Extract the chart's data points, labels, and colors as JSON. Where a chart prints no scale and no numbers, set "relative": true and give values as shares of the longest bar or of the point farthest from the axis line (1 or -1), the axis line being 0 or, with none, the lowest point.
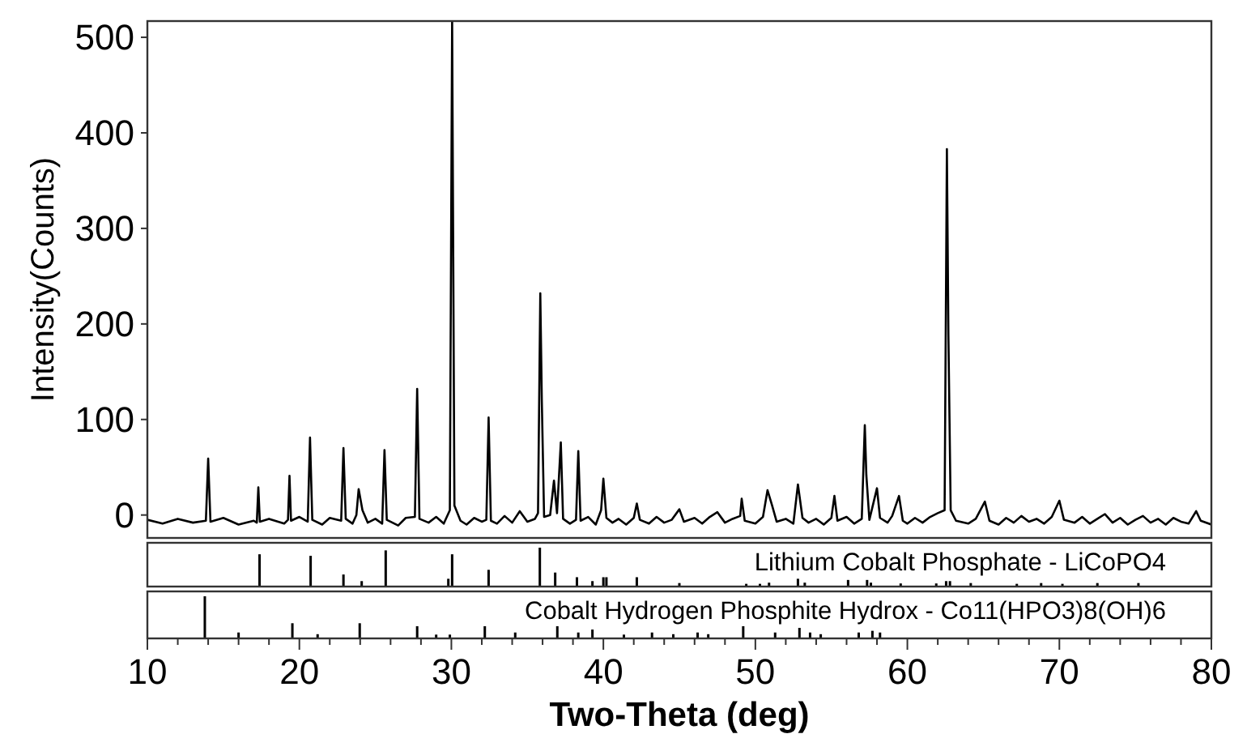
{
  "chart_data": [
    {
      "type": "line",
      "ylabel": "Intensity(Counts)",
      "xlim": [
        10,
        80
      ],
      "ylim": [
        -24,
        517
      ],
      "yticks": [
        0,
        100,
        200,
        300,
        400,
        500
      ],
      "tick_labels": "y",
      "grid": false,
      "series": [
        {
          "color": "#000000",
          "x": [
            10,
            11,
            12,
            13,
            13.85,
            14.0,
            14.15,
            15,
            16,
            17,
            17.2,
            17.3,
            17.4,
            18,
            19,
            19.25,
            19.35,
            19.45,
            20,
            20.55,
            20.7,
            20.85,
            21.5,
            22,
            22.75,
            22.9,
            23.05,
            23.5,
            23.75,
            23.9,
            24.15,
            24.5,
            25,
            25.45,
            25.6,
            25.75,
            26.5,
            27,
            27.6,
            27.75,
            27.9,
            28.5,
            29,
            29.5,
            29.9,
            30.05,
            30.2,
            30.6,
            31,
            31.5,
            32,
            32.3,
            32.45,
            32.6,
            33,
            33.5,
            34,
            34.5,
            35,
            35.5,
            35.7,
            35.85,
            35.95,
            36.1,
            36.5,
            36.75,
            36.95,
            37.2,
            37.35,
            37.8,
            38.2,
            38.35,
            38.5,
            39,
            39.5,
            39.85,
            40.0,
            40.2,
            40.6,
            41,
            41.5,
            42,
            42.2,
            42.4,
            43,
            43.5,
            44,
            44.5,
            45,
            45.3,
            46,
            46.5,
            47,
            47.5,
            48,
            48.5,
            49,
            49.1,
            49.3,
            50,
            50.5,
            50.8,
            51.1,
            51.4,
            52,
            52.5,
            52.8,
            53.1,
            53.5,
            54,
            54.5,
            55,
            55.2,
            55.4,
            56,
            56.5,
            57,
            57.2,
            57.3,
            57.5,
            58.0,
            58.2,
            58.7,
            59,
            59.45,
            59.7,
            60,
            60.5,
            61,
            61.5,
            62,
            62.45,
            62.6,
            62.7,
            62.85,
            63.2,
            64,
            64.5,
            65.1,
            65.4,
            66,
            66.5,
            67,
            67.5,
            68,
            68.5,
            69,
            69.5,
            70,
            70.3,
            71,
            71.5,
            72,
            72.5,
            73,
            73.5,
            74,
            74.5,
            75,
            75.5,
            76,
            76.5,
            77,
            77.5,
            78,
            78.5,
            79,
            79.3,
            80
          ],
          "values": [
            -5,
            -9,
            -4,
            -8,
            -6,
            59,
            -7,
            -3,
            -10,
            -6,
            -8,
            29,
            -7,
            -4,
            -9,
            -5,
            41,
            -6,
            -2,
            -7,
            81,
            -5,
            -10,
            -3,
            -6,
            70,
            -4,
            -9,
            0,
            27,
            5,
            -8,
            -4,
            -9,
            68,
            -5,
            -11,
            -3,
            -2,
            132,
            -4,
            -8,
            -2,
            -9,
            5,
            517,
            10,
            -6,
            -10,
            -3,
            -7,
            -5,
            102,
            -6,
            -9,
            -1,
            -8,
            4,
            -7,
            -4,
            2,
            232,
            120,
            -2,
            0,
            36,
            2,
            76,
            -4,
            -9,
            -5,
            67,
            -6,
            -2,
            -10,
            5,
            38,
            -3,
            -8,
            -4,
            -10,
            -3,
            12,
            -5,
            -9,
            -2,
            -8,
            -5,
            6,
            -7,
            -3,
            -9,
            -2,
            3,
            -8,
            -4,
            -1,
            17,
            -6,
            -9,
            -2,
            26,
            10,
            -7,
            -4,
            -9,
            32,
            -3,
            -8,
            -4,
            -10,
            -3,
            20,
            -6,
            -2,
            -9,
            -4,
            94,
            42,
            -5,
            28,
            -3,
            -8,
            -1,
            20,
            -6,
            -9,
            -3,
            -8,
            -2,
            2,
            5,
            383,
            188,
            5,
            -6,
            -9,
            -4,
            14,
            -6,
            -10,
            -3,
            -8,
            -1,
            -7,
            -4,
            -9,
            -2,
            15,
            -5,
            -8,
            -2,
            -9,
            -4,
            1,
            -8,
            -3,
            -10,
            -5,
            -1,
            -8,
            -4,
            -10,
            -3,
            -7,
            -9,
            4,
            -6,
            -10
          ]
        }
      ]
    },
    {
      "type": "bar",
      "relative": true,
      "title": "Lithium Cobalt Phosphate - LiCoPO4",
      "xlim": [
        10,
        80
      ],
      "tick_labels": false,
      "series": [
        {
          "color": "#000000",
          "x": [
            17.38,
            20.74,
            22.9,
            24.1,
            25.68,
            29.8,
            30.05,
            32.45,
            35.82,
            36.83,
            38.26,
            39.28,
            40.0,
            40.2,
            42.2,
            45.0,
            49.4,
            50.3,
            50.9,
            52.8,
            53.25,
            56.1,
            57.35,
            57.6,
            59.56,
            61.9,
            62.55,
            62.8,
            64.17,
            67.2,
            68.8,
            70.2,
            72.5,
            75.2
          ],
          "values": [
            0.83,
            0.79,
            0.31,
            0.14,
            0.93,
            0.2,
            0.83,
            0.43,
            1,
            0.36,
            0.24,
            0.14,
            0.24,
            0.24,
            0.24,
            0.09,
            0.07,
            0.07,
            0.1,
            0.2,
            0.1,
            0.17,
            0.17,
            0.1,
            0.08,
            0.08,
            0.14,
            0.14,
            0.09,
            0.07,
            0.09,
            0.07,
            0.09,
            0.09
          ]
        }
      ]
    },
    {
      "type": "bar",
      "relative": true,
      "title": "Cobalt Hydrogen Phosphite Hydrox - Co11(HPO3)8(OH)6",
      "xlabel": "Two-Theta (deg)",
      "xlim": [
        10,
        80
      ],
      "tick_labels": "x",
      "xticks": [
        10,
        {
          "value": 12,
          "label": null
        },
        {
          "value": 14,
          "label": null
        },
        {
          "value": 16,
          "label": null
        },
        {
          "value": 18,
          "label": null
        },
        20,
        {
          "value": 22,
          "label": null
        },
        {
          "value": 24,
          "label": null
        },
        {
          "value": 26,
          "label": null
        },
        {
          "value": 28,
          "label": null
        },
        30,
        {
          "value": 32,
          "label": null
        },
        {
          "value": 34,
          "label": null
        },
        {
          "value": 36,
          "label": null
        },
        {
          "value": 38,
          "label": null
        },
        40,
        {
          "value": 42,
          "label": null
        },
        {
          "value": 44,
          "label": null
        },
        {
          "value": 46,
          "label": null
        },
        {
          "value": 48,
          "label": null
        },
        50,
        {
          "value": 52,
          "label": null
        },
        {
          "value": 54,
          "label": null
        },
        {
          "value": 56,
          "label": null
        },
        {
          "value": 58,
          "label": null
        },
        60,
        {
          "value": 62,
          "label": null
        },
        {
          "value": 64,
          "label": null
        },
        {
          "value": 66,
          "label": null
        },
        {
          "value": 68,
          "label": null
        },
        70,
        {
          "value": 72,
          "label": null
        },
        {
          "value": 74,
          "label": null
        },
        {
          "value": 76,
          "label": null
        },
        {
          "value": 78,
          "label": null
        },
        80
      ],
      "series": [
        {
          "color": "#000000",
          "x": [
            13.78,
            16.0,
            19.54,
            21.2,
            23.97,
            27.75,
            29.0,
            29.9,
            32.2,
            34.2,
            36.97,
            38.35,
            39.28,
            41.35,
            43.2,
            44.6,
            46.2,
            46.9,
            49.2,
            51.3,
            52.9,
            53.6,
            54.3,
            56.8,
            57.7,
            58.2
          ],
          "values": [
            1,
            0.14,
            0.36,
            0.1,
            0.36,
            0.29,
            0.09,
            0.09,
            0.29,
            0.14,
            0.29,
            0.14,
            0.21,
            0.09,
            0.14,
            0.1,
            0.14,
            0.1,
            0.29,
            0.14,
            0.25,
            0.14,
            0.1,
            0.14,
            0.18,
            0.14
          ]
        }
      ]
    }
  ]
}
